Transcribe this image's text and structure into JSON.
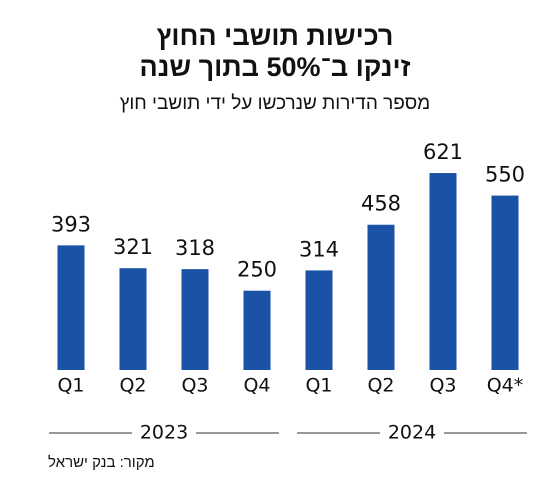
{
  "chart_data": {
    "type": "bar",
    "title": [
      "רכישות תושבי החוץ",
      "זינקו ב־50% בתוך שנה"
    ],
    "subtitle": "מספר הדירות שנרכשו על ידי תושבי חוץ",
    "categories": [
      "Q1",
      "Q2",
      "Q3",
      "Q4",
      "Q1",
      "Q2",
      "Q3",
      "Q4*"
    ],
    "values": [
      393,
      321,
      318,
      250,
      314,
      458,
      621,
      550
    ],
    "groups": [
      "2023",
      "2024"
    ],
    "color": "#1a52a5",
    "ylim": [
      0,
      700
    ],
    "source": "מקור: בנק ישראל"
  }
}
